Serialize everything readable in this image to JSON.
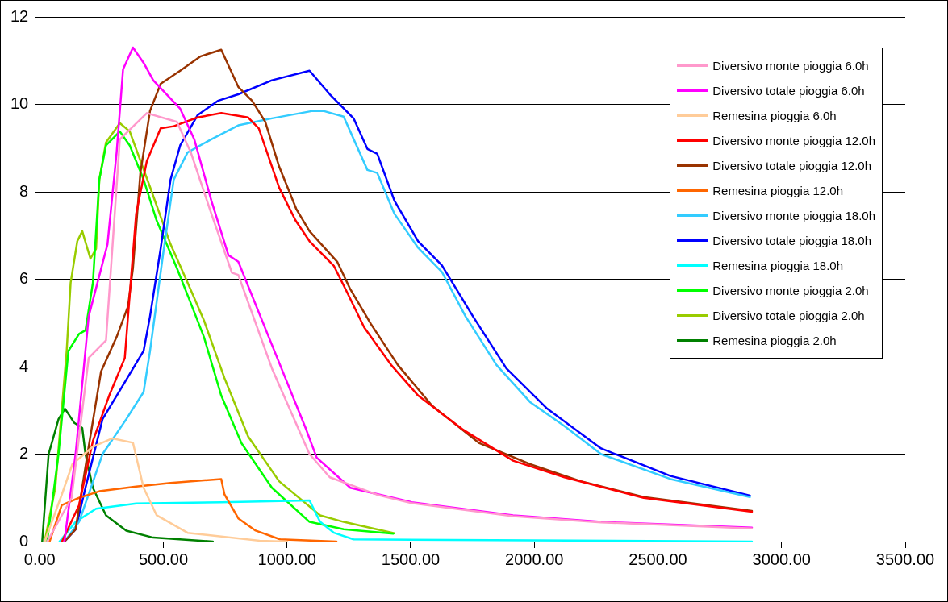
{
  "chart_data": {
    "type": "line",
    "xlim": [
      0,
      3500
    ],
    "ylim": [
      0,
      12
    ],
    "xticks": [
      {
        "value": 0,
        "label": "0.00"
      },
      {
        "value": 500,
        "label": "500.00"
      },
      {
        "value": 1000,
        "label": "1000.00"
      },
      {
        "value": 1500,
        "label": "1500.00"
      },
      {
        "value": 2000,
        "label": "2000.00"
      },
      {
        "value": 2500,
        "label": "2500.00"
      },
      {
        "value": 3000,
        "label": "3000.00"
      },
      {
        "value": 3500,
        "label": "3500.00"
      }
    ],
    "yticks": [
      0,
      2,
      4,
      6,
      8,
      10,
      12
    ],
    "grid": "y",
    "legend": "top right",
    "marker": "none",
    "line_style": "solid",
    "series": [
      {
        "name": "Diversivo monte pioggia 6.0h",
        "color": "#ff99cc",
        "x": [
          30,
          129,
          198,
          268,
          324,
          433,
          555,
          611,
          694,
          777,
          803,
          939,
          1091,
          1173,
          1365,
          1504,
          1914,
          2270,
          2880
        ],
        "values": [
          0,
          1,
          4.2,
          4.6,
          9.2,
          9.8,
          9.6,
          8.9,
          7.5,
          6.15,
          6.1,
          3.96,
          2.0,
          1.47,
          1.07,
          0.88,
          0.58,
          0.44,
          0.3
        ]
      },
      {
        "name": "Diversivo totale pioggia 6.0h",
        "color": "#ff00ff",
        "x": [
          100,
          145,
          198,
          274,
          311,
          337,
          377,
          420,
          459,
          568,
          625,
          694,
          763,
          803,
          939,
          1077,
          1120,
          1256,
          1504,
          1914,
          2270,
          2880
        ],
        "values": [
          0,
          2.0,
          5.15,
          6.8,
          8.9,
          10.8,
          11.3,
          10.95,
          10.55,
          9.9,
          9.2,
          7.8,
          6.55,
          6.4,
          4.5,
          2.57,
          1.92,
          1.23,
          0.9,
          0.6,
          0.45,
          0.32
        ]
      },
      {
        "name": "Remesina pioggia 6.0h",
        "color": "#ffcc99",
        "x": [
          20,
          89,
          132,
          215,
          294,
          377,
          420,
          473,
          598,
          889,
          1000
        ],
        "values": [
          0,
          1.07,
          1.77,
          2.17,
          2.36,
          2.26,
          1.23,
          0.6,
          0.2,
          0.02,
          0
        ]
      },
      {
        "name": "Diversivo monte pioggia 12.0h",
        "color": "#ff0000",
        "x": [
          90,
          159,
          215,
          281,
          344,
          357,
          390,
          433,
          489,
          542,
          638,
          734,
          843,
          886,
          968,
          1034,
          1091,
          1190,
          1243,
          1312,
          1421,
          1530,
          1709,
          1914,
          2122,
          2442,
          2880
        ],
        "values": [
          0,
          0.83,
          2.3,
          3.34,
          4.2,
          5.15,
          7.5,
          8.7,
          9.45,
          9.5,
          9.7,
          9.8,
          9.7,
          9.45,
          8.1,
          7.35,
          6.87,
          6.3,
          5.7,
          4.9,
          4.04,
          3.34,
          2.57,
          1.85,
          1.47,
          1.0,
          0.68
        ]
      },
      {
        "name": "Diversivo totale pioggia 12.0h",
        "color": "#993300",
        "x": [
          100,
          145,
          198,
          248,
          311,
          357,
          377,
          407,
          446,
          489,
          568,
          651,
          734,
          803,
          859,
          912,
          968,
          1038,
          1091,
          1203,
          1256,
          1339,
          1448,
          1586,
          1778,
          1983,
          2188,
          2442,
          2880
        ],
        "values": [
          0,
          0.28,
          2.17,
          3.89,
          4.68,
          5.38,
          6.25,
          8.43,
          9.85,
          10.47,
          10.77,
          11.1,
          11.25,
          10.4,
          10.08,
          9.6,
          8.58,
          7.6,
          7.1,
          6.4,
          5.77,
          4.98,
          4.04,
          3.11,
          2.25,
          1.77,
          1.38,
          1.02,
          0.7
        ]
      },
      {
        "name": "Remesina pioggia 12.0h",
        "color": "#ff6600",
        "x": [
          40,
          89,
          159,
          241,
          390,
          529,
          734,
          747,
          803,
          873,
          972,
          1200
        ],
        "values": [
          0,
          0.83,
          1.0,
          1.15,
          1.26,
          1.34,
          1.43,
          1.08,
          0.53,
          0.25,
          0.05,
          0
        ]
      },
      {
        "name": "Diversivo monte pioggia 18.0h",
        "color": "#33ccff",
        "x": [
          100,
          159,
          254,
          350,
          420,
          446,
          502,
          542,
          598,
          694,
          803,
          939,
          1104,
          1147,
          1229,
          1325,
          1365,
          1434,
          1530,
          1626,
          1722,
          1847,
          1983,
          2122,
          2270,
          2551,
          2872
        ],
        "values": [
          0,
          0.45,
          2.0,
          2.8,
          3.42,
          4.36,
          6.7,
          8.28,
          8.9,
          9.2,
          9.52,
          9.68,
          9.85,
          9.85,
          9.72,
          8.5,
          8.43,
          7.5,
          6.72,
          6.17,
          5.15,
          4.04,
          3.19,
          2.64,
          2.0,
          1.43,
          1.02
        ]
      },
      {
        "name": "Diversivo totale pioggia 18.0h",
        "color": "#0000ff",
        "x": [
          100,
          145,
          185,
          254,
          337,
          420,
          446,
          489,
          529,
          568,
          638,
          720,
          803,
          939,
          1091,
          1173,
          1269,
          1325,
          1365,
          1434,
          1530,
          1626,
          1752,
          1887,
          2052,
          2270,
          2551,
          2872
        ],
        "values": [
          0,
          0.28,
          1.23,
          2.8,
          3.58,
          4.36,
          5.15,
          6.7,
          8.28,
          9.06,
          9.75,
          10.08,
          10.23,
          10.55,
          10.77,
          10.23,
          9.68,
          8.98,
          8.87,
          7.8,
          6.87,
          6.32,
          5.15,
          3.96,
          3.04,
          2.13,
          1.5,
          1.05
        ]
      },
      {
        "name": "Remesina pioggia 18.0h",
        "color": "#00ffff",
        "x": [
          80,
          145,
          228,
          390,
          734,
          1091,
          1134,
          1190,
          1269,
          2880
        ],
        "values": [
          0,
          0.45,
          0.75,
          0.87,
          0.9,
          0.94,
          0.45,
          0.2,
          0.05,
          0
        ]
      },
      {
        "name": "Diversivo monte pioggia 2.0h",
        "color": "#00ff00",
        "x": [
          30,
          76,
          116,
          159,
          185,
          215,
          241,
          268,
          324,
          364,
          420,
          473,
          555,
          611,
          664,
          734,
          816,
          939,
          1091,
          1229,
          1430
        ],
        "values": [
          0,
          2.0,
          4.36,
          4.75,
          4.83,
          5.92,
          8.28,
          9.06,
          9.38,
          9.06,
          8.28,
          7.34,
          6.25,
          5.45,
          4.68,
          3.34,
          2.25,
          1.23,
          0.45,
          0.28,
          0.18
        ]
      },
      {
        "name": "Diversivo totale pioggia 2.0h",
        "color": "#99cc00",
        "x": [
          20,
          63,
          109,
          125,
          152,
          172,
          205,
          228,
          241,
          268,
          324,
          364,
          446,
          529,
          598,
          664,
          747,
          843,
          968,
          1134,
          1229,
          1434
        ],
        "values": [
          0,
          1.23,
          4.36,
          5.92,
          6.87,
          7.1,
          6.47,
          6.7,
          8.28,
          9.13,
          9.57,
          9.38,
          8.11,
          6.8,
          5.92,
          5.06,
          3.74,
          2.4,
          1.38,
          0.6,
          0.45,
          0.19
        ]
      },
      {
        "name": "Remesina pioggia 2.0h",
        "color": "#008000",
        "x": [
          10,
          36,
          76,
          102,
          139,
          172,
          185,
          215,
          268,
          350,
          459,
          700
        ],
        "values": [
          0,
          2.0,
          2.8,
          3.04,
          2.72,
          2.6,
          2.0,
          1.23,
          0.6,
          0.25,
          0.09,
          0
        ]
      }
    ]
  }
}
